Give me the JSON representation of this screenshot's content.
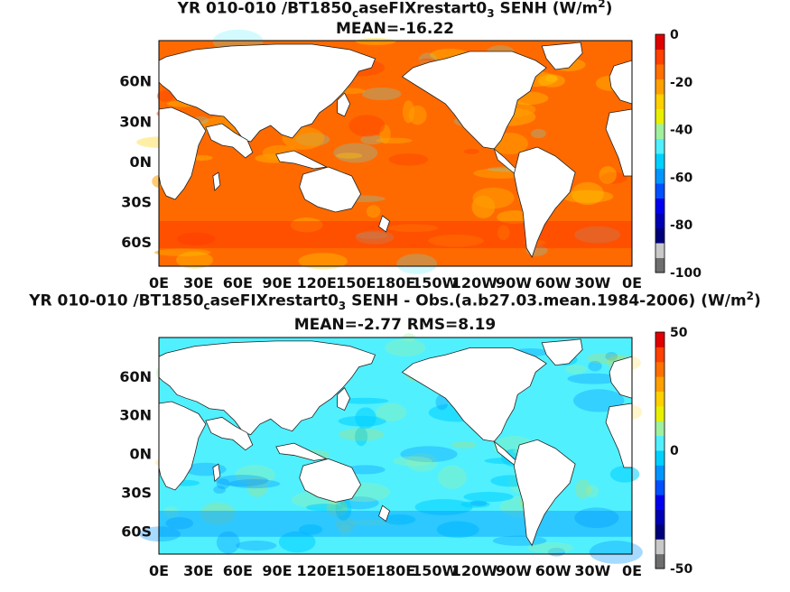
{
  "chart_data": [
    {
      "type": "heatmap",
      "title": {
        "line1_a": "YR 010-010 /BT1850",
        "line1_sub": "c",
        "line1_b": "aseFIXrestart0",
        "line1_sub2": "3",
        "line1_c": " SENH (W/m",
        "line1_sup": "2",
        "line1_d": ")",
        "line2": "MEAN=-16.22"
      },
      "mean": -16.22,
      "x_ticks": [
        "0E",
        "30E",
        "60E",
        "90E",
        "120E",
        "150E",
        "180E",
        "150W",
        "120W",
        "90W",
        "60W",
        "30W",
        "0E"
      ],
      "y_ticks": [
        "60N",
        "30N",
        "0N",
        "30S",
        "60S"
      ],
      "y_tick_values": [
        60,
        30,
        0,
        -30,
        -60
      ],
      "xlim": [
        0,
        360
      ],
      "ylim": [
        -78,
        90
      ],
      "colorbar": {
        "range": [
          -100,
          0
        ],
        "tick_labels": [
          "0",
          "-20",
          "-40",
          "-60",
          "-80",
          "-100"
        ],
        "colors": [
          "#6e6e6e",
          "#c8c8c8",
          "#00007a",
          "#0000b4",
          "#0000f0",
          "#0050ff",
          "#0096ff",
          "#00d0ff",
          "#50f0ff",
          "#a0f0a0",
          "#e8f000",
          "#ffd000",
          "#ffa000",
          "#ff7000",
          "#ff4000",
          "#e00000"
        ]
      }
    },
    {
      "type": "heatmap",
      "title": {
        "line1_a": "YR 010-010 /BT1850",
        "line1_sub": "c",
        "line1_b": "aseFIXrestart0",
        "line1_sub2": "3",
        "line1_c": " SENH - Obs.(a.b27.03.mean.1984-2006) (W/m",
        "line1_sup": "2",
        "line1_d": ")",
        "line2": "MEAN=-2.77 RMS=8.19"
      },
      "mean": -2.77,
      "rms": 8.19,
      "x_ticks": [
        "0E",
        "30E",
        "60E",
        "90E",
        "120E",
        "150E",
        "180E",
        "150W",
        "120W",
        "90W",
        "60W",
        "30W",
        "0E"
      ],
      "y_ticks": [
        "60N",
        "30N",
        "0N",
        "30S",
        "60S"
      ],
      "y_tick_values": [
        60,
        30,
        0,
        -30,
        -60
      ],
      "xlim": [
        0,
        360
      ],
      "ylim": [
        -78,
        90
      ],
      "colorbar": {
        "range": [
          -50,
          50
        ],
        "tick_labels": [
          "50",
          "0",
          "-50"
        ],
        "colors": [
          "#6e6e6e",
          "#c8c8c8",
          "#00007a",
          "#0000b4",
          "#0000f0",
          "#0050ff",
          "#0096ff",
          "#00d0ff",
          "#50f0ff",
          "#a0f0a0",
          "#e8f000",
          "#ffd000",
          "#ffa000",
          "#ff7000",
          "#ff4000",
          "#e00000"
        ]
      }
    }
  ]
}
